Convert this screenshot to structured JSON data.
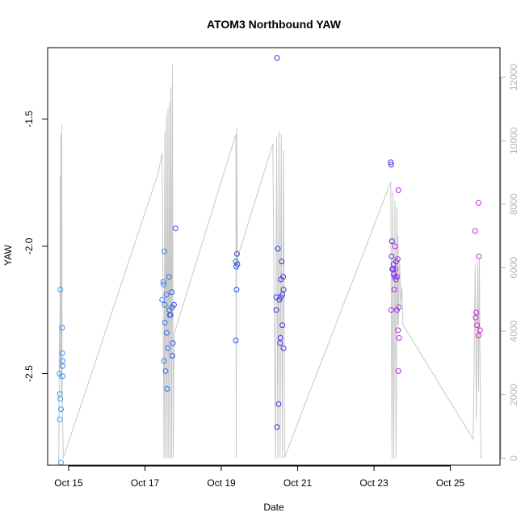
{
  "chart_data": {
    "type": "scatter",
    "title": "ATOM3 Northbound YAW",
    "xlabel": "Date",
    "ylabel": "YAW",
    "x_ticks": [
      "Oct 15",
      "Oct 17",
      "Oct 19",
      "Oct 21",
      "Oct 23",
      "Oct 25"
    ],
    "x_tick_values": [
      15,
      17,
      19,
      21,
      23,
      25
    ],
    "xlim": [
      14.45,
      26.3
    ],
    "ylim": [
      -2.86,
      -1.22
    ],
    "y_ticks": [
      "-2.5",
      "-2.0",
      "-1.5"
    ],
    "y_tick_values": [
      -2.5,
      -2.0,
      -1.5
    ],
    "y2_ticks": [
      "0",
      "2000",
      "4000",
      "6000",
      "8000",
      "10000",
      "12000"
    ],
    "y2_tick_values": [
      0,
      2000,
      4000,
      6000,
      8000,
      10000,
      12000
    ],
    "y2lim": [
      -220,
      12930
    ],
    "grid": false,
    "point_color_start": "#3aa6ec",
    "point_color_end": "#e61fe6",
    "line_color": "#c8c8c8",
    "points": [
      {
        "x": 14.78,
        "y": -2.17
      },
      {
        "x": 14.76,
        "y": -2.5
      },
      {
        "x": 14.77,
        "y": -2.58
      },
      {
        "x": 14.78,
        "y": -2.6
      },
      {
        "x": 14.77,
        "y": -2.68
      },
      {
        "x": 14.8,
        "y": -2.64
      },
      {
        "x": 14.8,
        "y": -2.85
      },
      {
        "x": 14.83,
        "y": -2.32
      },
      {
        "x": 14.83,
        "y": -2.42
      },
      {
        "x": 14.84,
        "y": -2.45
      },
      {
        "x": 14.84,
        "y": -2.47
      },
      {
        "x": 14.84,
        "y": -2.51
      },
      {
        "x": 17.45,
        "y": -2.21
      },
      {
        "x": 17.48,
        "y": -2.14
      },
      {
        "x": 17.49,
        "y": -2.15
      },
      {
        "x": 17.51,
        "y": -2.02
      },
      {
        "x": 17.52,
        "y": -2.23
      },
      {
        "x": 17.52,
        "y": -2.3
      },
      {
        "x": 17.5,
        "y": -2.45
      },
      {
        "x": 17.54,
        "y": -2.49
      },
      {
        "x": 17.56,
        "y": -2.19
      },
      {
        "x": 17.57,
        "y": -2.34
      },
      {
        "x": 17.6,
        "y": -2.4
      },
      {
        "x": 17.58,
        "y": -2.56
      },
      {
        "x": 17.63,
        "y": -2.12
      },
      {
        "x": 17.64,
        "y": -2.25
      },
      {
        "x": 17.65,
        "y": -2.27
      },
      {
        "x": 17.67,
        "y": -2.27
      },
      {
        "x": 17.7,
        "y": -2.18
      },
      {
        "x": 17.71,
        "y": -2.24
      },
      {
        "x": 17.73,
        "y": -2.38
      },
      {
        "x": 17.72,
        "y": -2.43
      },
      {
        "x": 17.76,
        "y": -2.23
      },
      {
        "x": 17.8,
        "y": -1.93
      },
      {
        "x": 19.38,
        "y": -2.06
      },
      {
        "x": 19.39,
        "y": -2.08
      },
      {
        "x": 19.41,
        "y": -2.03
      },
      {
        "x": 19.42,
        "y": -2.07
      },
      {
        "x": 19.4,
        "y": -2.17
      },
      {
        "x": 19.38,
        "y": -2.37
      },
      {
        "x": 20.46,
        "y": -1.26
      },
      {
        "x": 20.48,
        "y": -2.01
      },
      {
        "x": 20.44,
        "y": -2.2
      },
      {
        "x": 20.44,
        "y": -2.25
      },
      {
        "x": 20.46,
        "y": -2.71
      },
      {
        "x": 20.5,
        "y": -2.62
      },
      {
        "x": 20.52,
        "y": -2.21
      },
      {
        "x": 20.56,
        "y": -2.13
      },
      {
        "x": 20.58,
        "y": -2.06
      },
      {
        "x": 20.6,
        "y": -2.19
      },
      {
        "x": 20.62,
        "y": -2.12
      },
      {
        "x": 20.63,
        "y": -2.17
      },
      {
        "x": 20.55,
        "y": -2.36
      },
      {
        "x": 20.54,
        "y": -2.38
      },
      {
        "x": 20.6,
        "y": -2.31
      },
      {
        "x": 20.63,
        "y": -2.4
      },
      {
        "x": 20.56,
        "y": -2.2
      },
      {
        "x": 23.44,
        "y": -1.67
      },
      {
        "x": 23.45,
        "y": -1.68
      },
      {
        "x": 23.47,
        "y": -1.98
      },
      {
        "x": 23.46,
        "y": -2.04
      },
      {
        "x": 23.48,
        "y": -2.09
      },
      {
        "x": 23.5,
        "y": -2.09
      },
      {
        "x": 23.51,
        "y": -2.07
      },
      {
        "x": 23.52,
        "y": -2.11
      },
      {
        "x": 23.54,
        "y": -2.12
      },
      {
        "x": 23.56,
        "y": -2.09
      },
      {
        "x": 23.57,
        "y": -2.13
      },
      {
        "x": 23.58,
        "y": -2.06
      },
      {
        "x": 23.6,
        "y": -2.12
      },
      {
        "x": 23.62,
        "y": -2.05
      },
      {
        "x": 23.53,
        "y": -2.17
      },
      {
        "x": 23.45,
        "y": -2.25
      },
      {
        "x": 23.6,
        "y": -2.25
      },
      {
        "x": 23.65,
        "y": -2.24
      },
      {
        "x": 23.63,
        "y": -2.33
      },
      {
        "x": 23.66,
        "y": -2.36
      },
      {
        "x": 23.64,
        "y": -2.49
      },
      {
        "x": 23.64,
        "y": -1.78
      },
      {
        "x": 23.55,
        "y": -2.0
      },
      {
        "x": 25.65,
        "y": -1.94
      },
      {
        "x": 25.74,
        "y": -1.83
      },
      {
        "x": 25.75,
        "y": -2.04
      },
      {
        "x": 25.68,
        "y": -2.26
      },
      {
        "x": 25.66,
        "y": -2.28
      },
      {
        "x": 25.7,
        "y": -2.31
      },
      {
        "x": 25.74,
        "y": -2.35
      },
      {
        "x": 25.78,
        "y": -2.33
      }
    ],
    "line_series": [
      [
        14.74,
        -220
      ],
      [
        14.76,
        4200
      ],
      [
        14.77,
        2500
      ],
      [
        14.78,
        8900
      ],
      [
        14.79,
        3000
      ],
      [
        14.8,
        10200
      ],
      [
        14.81,
        2000
      ],
      [
        14.82,
        10500
      ],
      [
        14.83,
        1800
      ],
      [
        14.86,
        0
      ],
      [
        17.35,
        9000
      ],
      [
        17.45,
        9600
      ],
      [
        17.5,
        0
      ],
      [
        17.52,
        10300
      ],
      [
        17.54,
        0
      ],
      [
        17.56,
        10800
      ],
      [
        17.58,
        0
      ],
      [
        17.6,
        11000
      ],
      [
        17.62,
        0
      ],
      [
        17.64,
        11200
      ],
      [
        17.66,
        0
      ],
      [
        17.68,
        11700
      ],
      [
        17.7,
        0
      ],
      [
        17.72,
        12400
      ],
      [
        17.74,
        0
      ],
      [
        17.76,
        3900
      ],
      [
        19.38,
        10200
      ],
      [
        19.39,
        0
      ],
      [
        19.4,
        10400
      ],
      [
        19.42,
        6300
      ],
      [
        20.35,
        9900
      ],
      [
        20.42,
        0
      ],
      [
        20.45,
        10100
      ],
      [
        20.48,
        0
      ],
      [
        20.51,
        10300
      ],
      [
        20.54,
        0
      ],
      [
        20.57,
        10200
      ],
      [
        20.6,
        0
      ],
      [
        20.63,
        9700
      ],
      [
        20.66,
        0
      ],
      [
        20.68,
        100
      ],
      [
        23.44,
        8700
      ],
      [
        23.47,
        0
      ],
      [
        23.49,
        8400
      ],
      [
        23.52,
        0
      ],
      [
        23.55,
        8100
      ],
      [
        23.58,
        0
      ],
      [
        23.6,
        7900
      ],
      [
        23.62,
        4200
      ],
      [
        23.63,
        7000
      ],
      [
        23.64,
        4200
      ],
      [
        23.67,
        6200
      ],
      [
        23.69,
        5300
      ],
      [
        23.7,
        4800
      ],
      [
        23.73,
        5400
      ],
      [
        23.76,
        4200
      ],
      [
        25.6,
        600
      ],
      [
        25.65,
        6100
      ],
      [
        25.68,
        1200
      ],
      [
        25.72,
        6200
      ],
      [
        25.74,
        2100
      ],
      [
        25.76,
        6300
      ],
      [
        25.78,
        2700
      ],
      [
        25.8,
        0
      ],
      [
        25.82,
        100
      ]
    ]
  }
}
